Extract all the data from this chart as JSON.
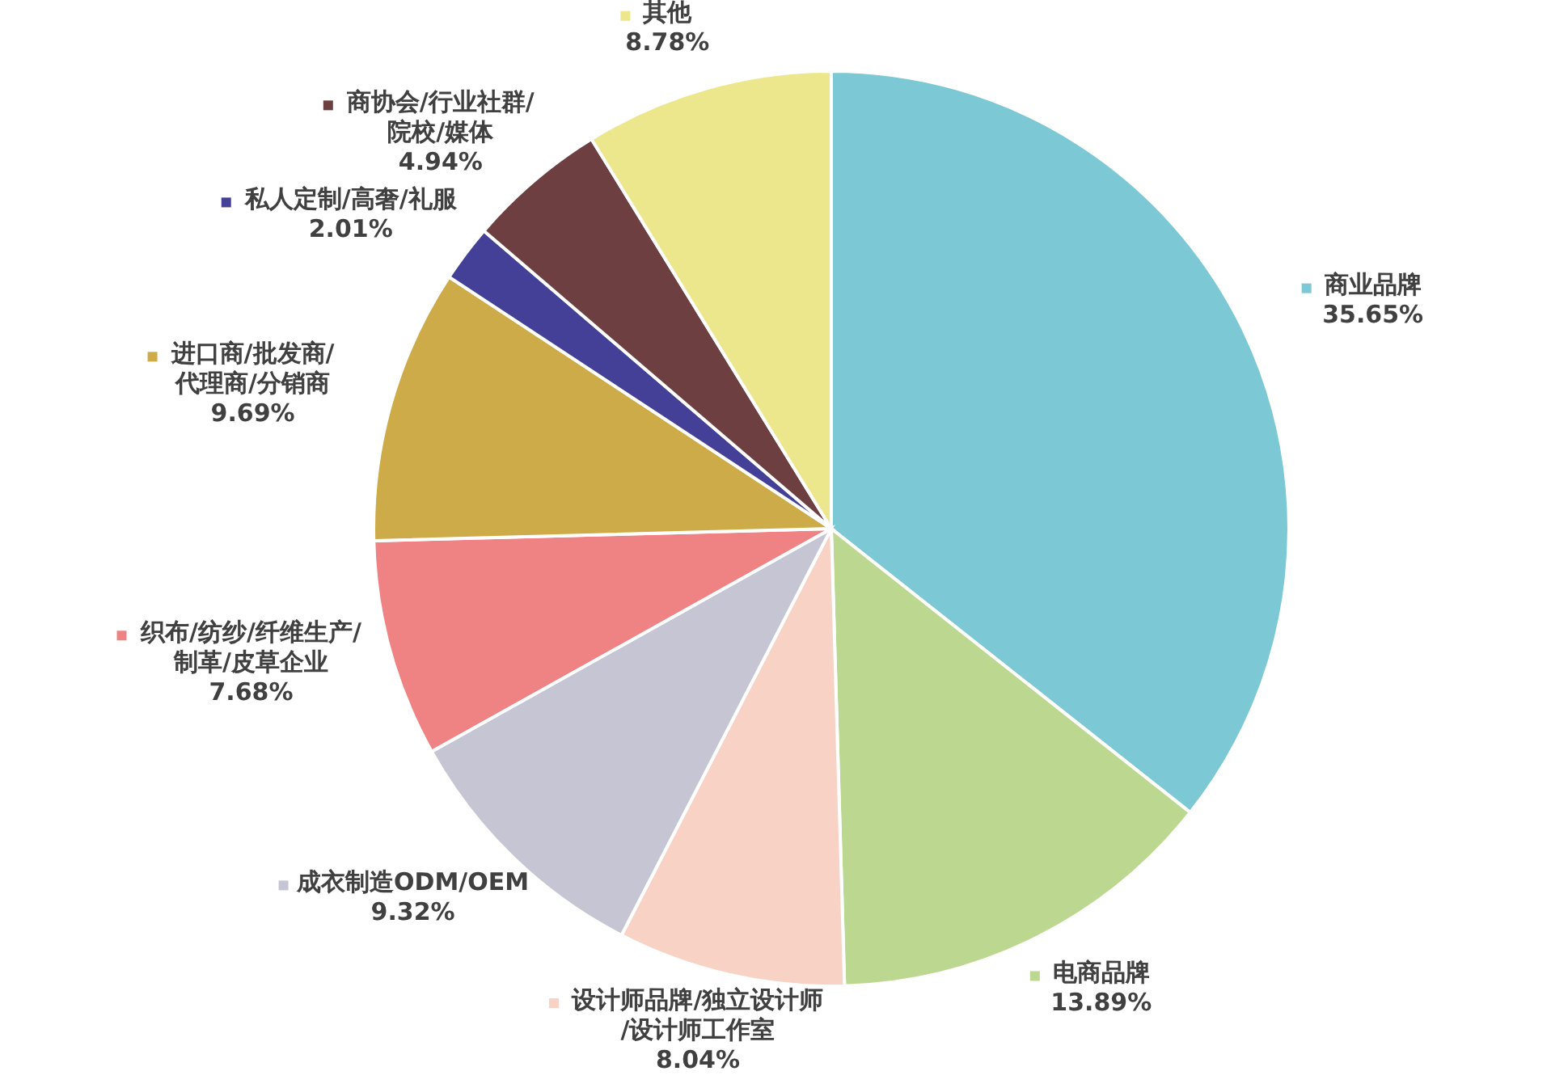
{
  "chart_data": {
    "type": "pie",
    "categories": [
      "商业品牌",
      "电商品牌",
      "设计师品牌/独立设计师\n/设计师工作室",
      "成衣制造ODM/OEM",
      "织布/纺纱/纤维生产/\n制革/皮草企业",
      "进口商/批发商/\n代理商/分销商",
      "私人定制/高奢/礼服",
      "商协会/行业社群/\n院校/媒体",
      "其他"
    ],
    "values": [
      35.65,
      13.89,
      8.04,
      9.32,
      7.68,
      9.69,
      2.01,
      4.94,
      8.78
    ],
    "value_labels": [
      "35.65%",
      "13.89%",
      "8.04%",
      "9.32%",
      "7.68%",
      "9.69%",
      "2.01%",
      "4.94%",
      "8.78%"
    ],
    "colors": [
      "#7cc8d4",
      "#bcd890",
      "#f7d2c5",
      "#c6c5d4",
      "#ef8383",
      "#ceab49",
      "#454097",
      "#6d3f41",
      "#ece78c"
    ],
    "legend": true
  }
}
